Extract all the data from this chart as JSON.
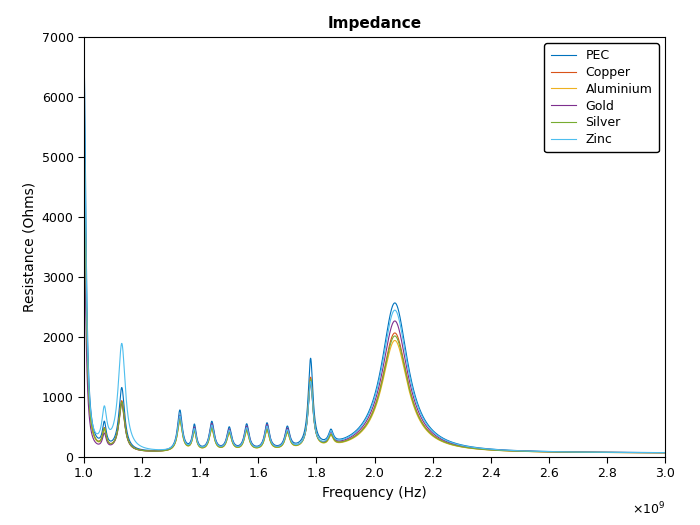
{
  "title": "Impedance",
  "xlabel": "Frequency (Hz)",
  "ylabel": "Resistance (Ohms)",
  "xlim": [
    1000000000.0,
    3000000000.0
  ],
  "ylim": [
    0,
    7000
  ],
  "xtick_values": [
    1000000000.0,
    1200000000.0,
    1400000000.0,
    1600000000.0,
    1800000000.0,
    2000000000.0,
    2200000000.0,
    2400000000.0,
    2600000000.0,
    2800000000.0,
    3000000000.0
  ],
  "ytick_values": [
    0,
    1000,
    2000,
    3000,
    4000,
    5000,
    6000,
    7000
  ],
  "legend": [
    "PEC",
    "Copper",
    "Aluminium",
    "Gold",
    "Silver",
    "Zinc"
  ],
  "colors": [
    "#0072BD",
    "#D95319",
    "#EDB120",
    "#7E2F8E",
    "#77AC30",
    "#4DBEEE"
  ],
  "background_color": "#ffffff",
  "title_fontsize": 11,
  "axis_fontsize": 10,
  "legend_fontsize": 9
}
